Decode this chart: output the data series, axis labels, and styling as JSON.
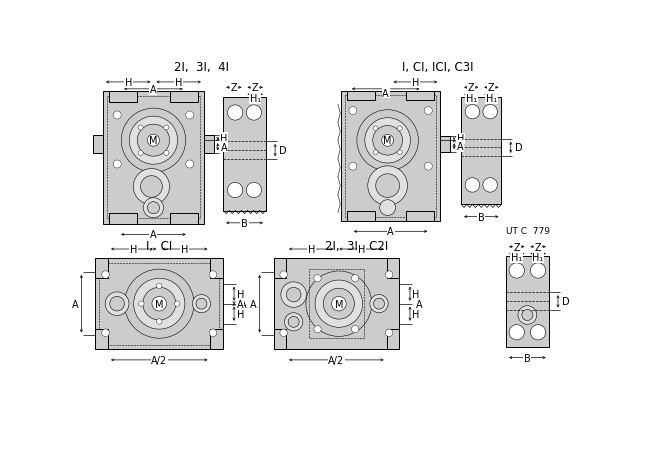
{
  "bg_color": "#ffffff",
  "line_color": "#000000",
  "fill_color": "#cccccc",
  "title1": "2I,  3I,  4I",
  "title2": "I, CI, ICI, C3I",
  "title3": "I,  CI",
  "title4": "2I,  3I,  C2I",
  "watermark": "UT C  779",
  "font_size_title": 8.5,
  "font_size_label": 7.0,
  "font_size_m": 7.5,
  "lw_body": 0.7,
  "lw_dim": 0.5,
  "lw_inner": 0.4
}
